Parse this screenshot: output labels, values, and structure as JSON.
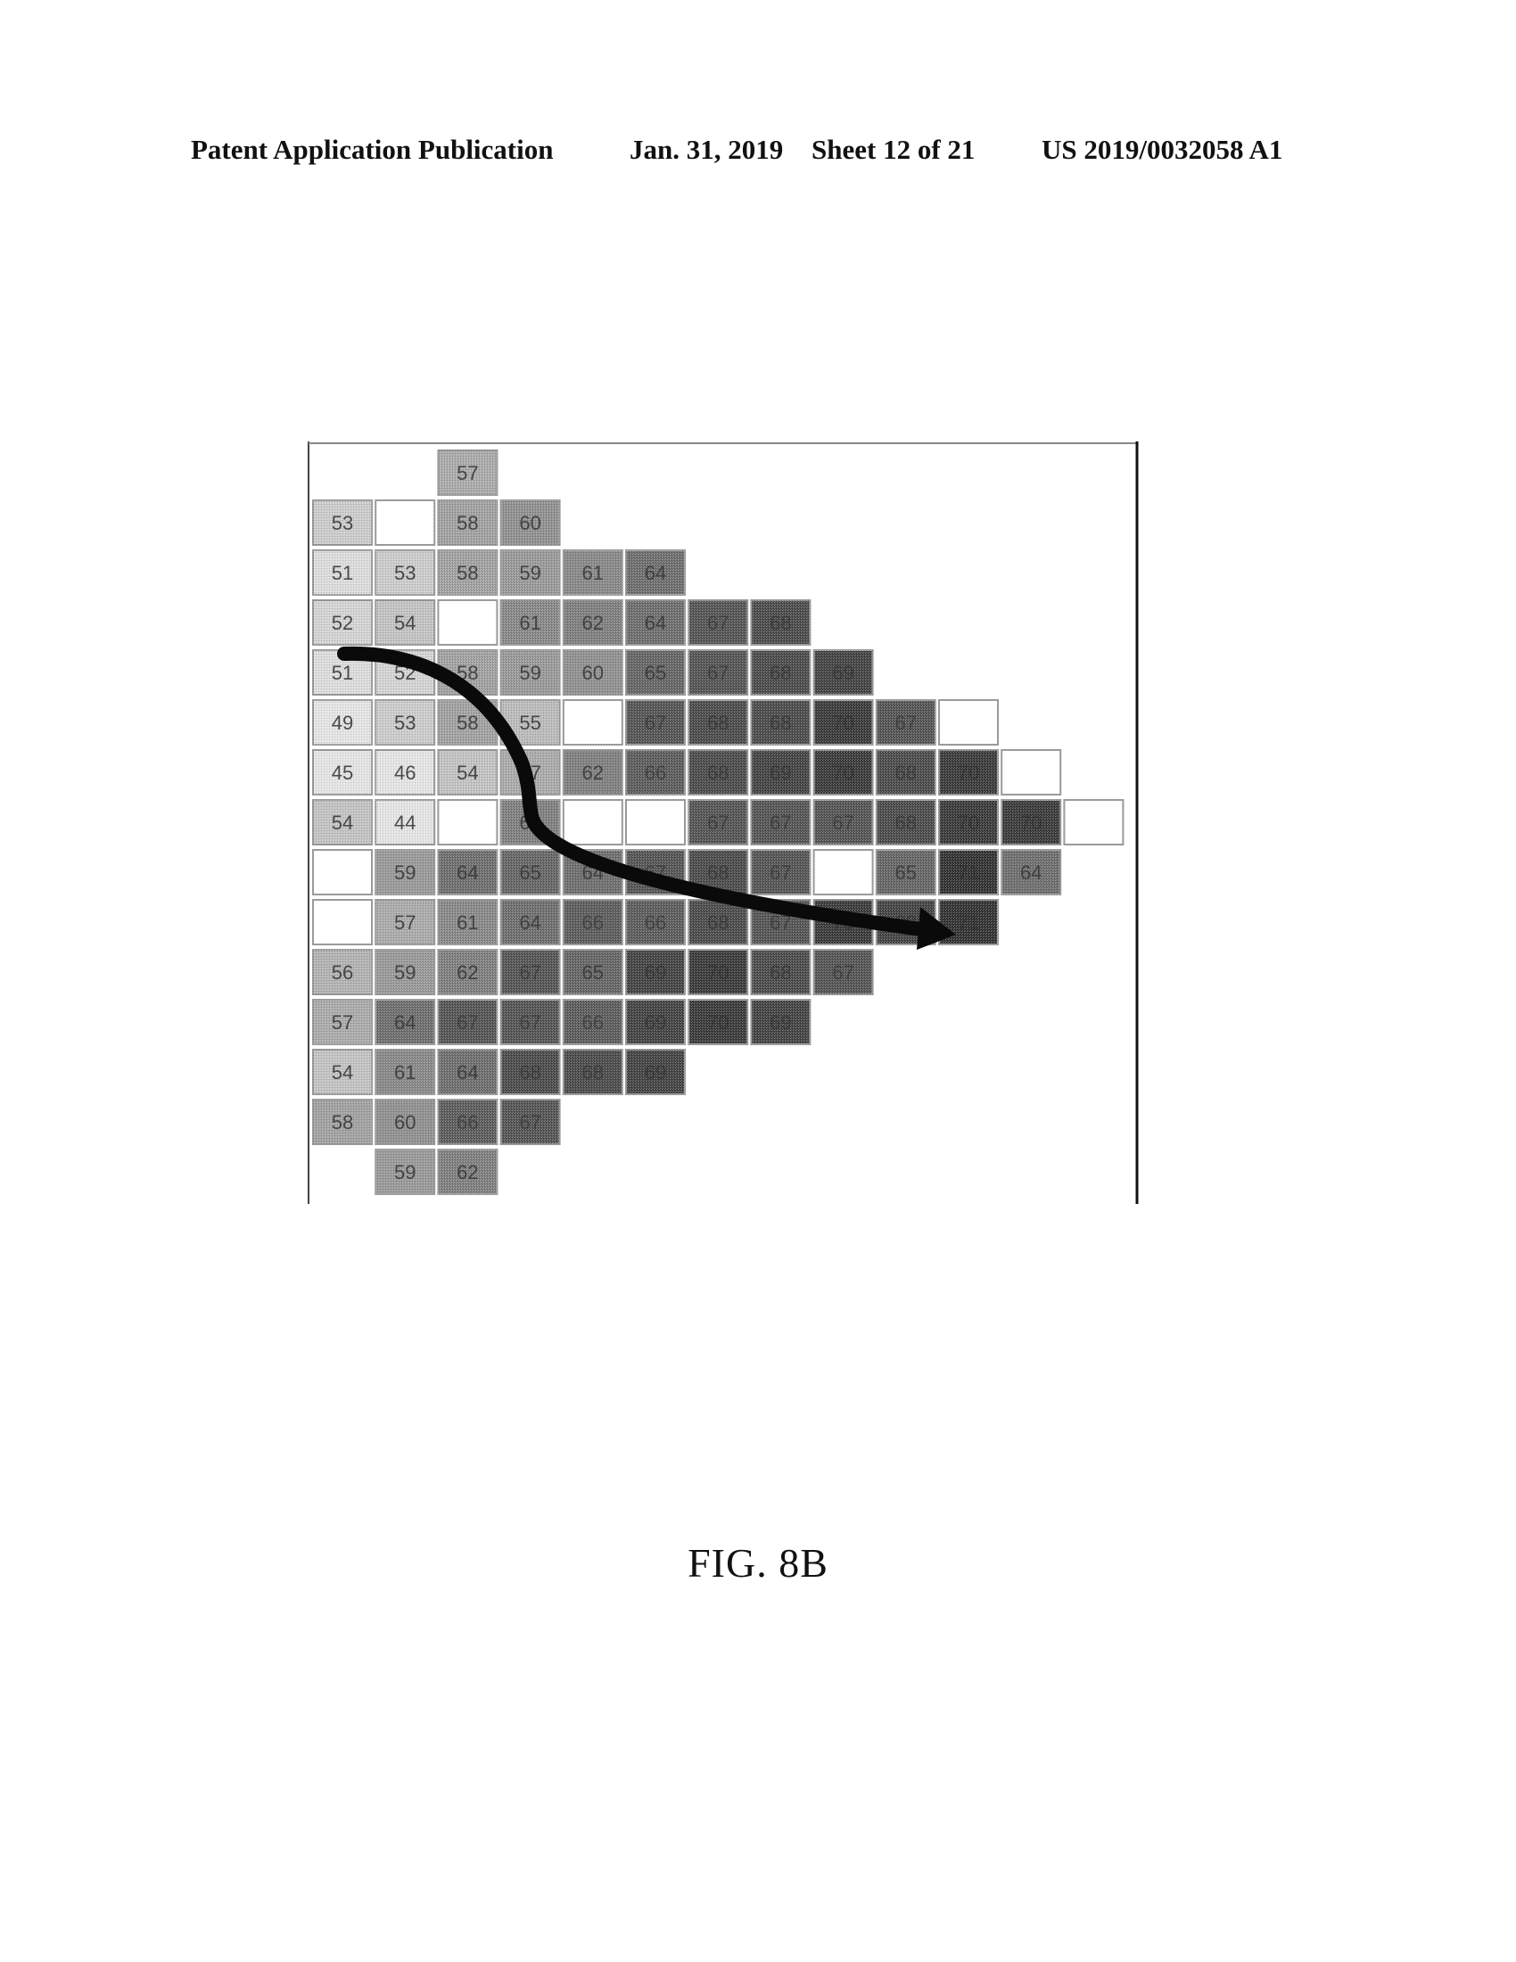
{
  "header": {
    "publication": "Patent Application Publication",
    "date": "Jan. 31, 2019",
    "sheet": "Sheet 12 of 21",
    "number": "US 2019/0032058 A1"
  },
  "caption": "FIG. 8B",
  "colors": {
    "arrow": "#0a0a0a",
    "frame": "#111111",
    "cell_blank": "#ffffff"
  },
  "chart_data": {
    "type": "heatmap",
    "row_start_cols": [
      2,
      0,
      0,
      0,
      0,
      0,
      0,
      0,
      0,
      0,
      0,
      0,
      0,
      0,
      1
    ],
    "rows": [
      [
        57
      ],
      [
        53,
        null,
        58,
        60
      ],
      [
        51,
        53,
        58,
        59,
        61,
        64
      ],
      [
        52,
        54,
        null,
        61,
        62,
        64,
        67,
        68
      ],
      [
        51,
        52,
        58,
        59,
        60,
        65,
        67,
        68,
        69
      ],
      [
        49,
        53,
        58,
        55,
        null,
        67,
        68,
        68,
        70,
        67,
        null
      ],
      [
        45,
        46,
        54,
        57,
        62,
        66,
        68,
        69,
        70,
        68,
        70,
        null
      ],
      [
        54,
        44,
        null,
        62,
        null,
        null,
        67,
        67,
        67,
        68,
        70,
        70,
        null
      ],
      [
        null,
        59,
        64,
        65,
        64,
        67,
        68,
        67,
        null,
        65,
        71,
        64
      ],
      [
        null,
        57,
        61,
        64,
        66,
        66,
        68,
        67,
        70,
        69,
        71
      ],
      [
        56,
        59,
        62,
        67,
        65,
        69,
        70,
        68,
        67
      ],
      [
        57,
        64,
        67,
        67,
        66,
        69,
        70,
        69
      ],
      [
        54,
        61,
        64,
        68,
        68,
        69
      ],
      [
        58,
        60,
        66,
        67
      ],
      [
        59,
        62
      ]
    ]
  }
}
